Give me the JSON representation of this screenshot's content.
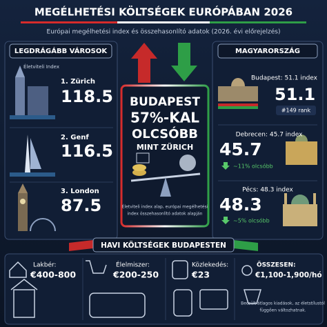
{
  "header": {
    "title": "MEGÉLHETÉSI KÖLTSÉGEK EURÓPÁBAN 2026",
    "subtitle": "Európai megélhetési index és összehasonlító adatok (2026. évi előrejelzés)"
  },
  "left_panel": {
    "title": "LEGDRÁGÁBB VÁROSOK",
    "sublabel": "Életviteli Index",
    "cities": [
      {
        "name": "1. Zürich",
        "index": "118.5"
      },
      {
        "name": "2. Genf",
        "index": "116.5"
      },
      {
        "name": "3. London",
        "index": "87.5"
      }
    ]
  },
  "center": {
    "lines": [
      "BUDAPEST",
      "57%-KAL",
      "OLCSÓBB",
      "MINT ZÜRICH"
    ],
    "note_lines": [
      "Életviteli index alap, európai megélhetési",
      "index összehasonlító adatok alapján"
    ]
  },
  "right_panel": {
    "title": "MAGYARORSZÁG",
    "cities": [
      {
        "label": "Budapest: 51.1 index",
        "index": "51.1",
        "badge": "#149 rank"
      },
      {
        "label": "Debrecen: 45.7 index",
        "index": "45.7",
        "badge": "~11% olcsóbb"
      },
      {
        "label": "Pécs: 48.3 index",
        "index": "48.3",
        "badge": "~5% olcsóbb"
      }
    ]
  },
  "costs": {
    "title": "HAVI KÖLTSÉGEK BUDAPESTEN",
    "items": [
      {
        "label": "Lakbér:",
        "value": "€400-800"
      },
      {
        "label": "Élelmiszer:",
        "value": "€200-250"
      },
      {
        "label": "Közlekedés:",
        "value": "€23"
      },
      {
        "label": "ÖSSZESEN:",
        "value": "€1,100-1,900/hó"
      }
    ],
    "note_lines": [
      "Becsült átlagos kiadások, az életstílustól",
      "függően változhatnak."
    ]
  }
}
